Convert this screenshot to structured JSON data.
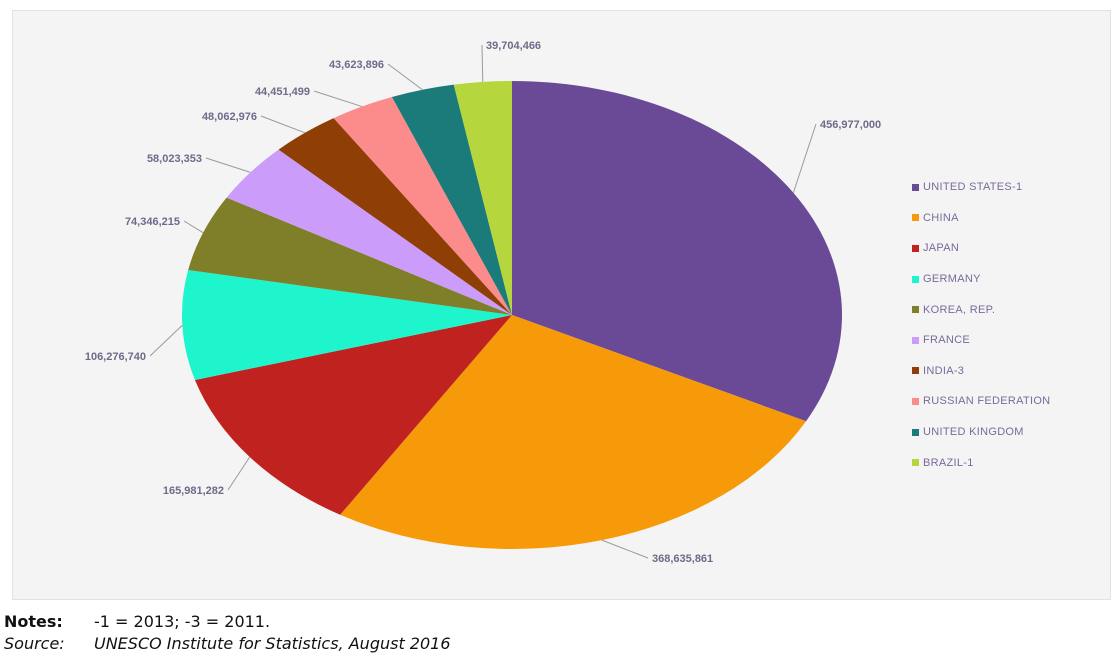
{
  "chart_data": {
    "type": "pie",
    "title": "",
    "slices": [
      {
        "label": "UNITED STATES-1",
        "value": 456977000,
        "value_label": "456,977,000",
        "color": "#6a4a96"
      },
      {
        "label": "CHINA",
        "value": 368635861,
        "value_label": "368,635,861",
        "color": "#f79a09"
      },
      {
        "label": "JAPAN",
        "value": 165981282,
        "value_label": "165,981,282",
        "color": "#c02220"
      },
      {
        "label": "GERMANY",
        "value": 106276740,
        "value_label": "106,276,740",
        "color": "#1ef5cc"
      },
      {
        "label": "KOREA, REP.",
        "value": 74346215,
        "value_label": "74,346,215",
        "color": "#7f7f2a"
      },
      {
        "label": "FRANCE",
        "value": 58023353,
        "value_label": "58,023,353",
        "color": "#cc9cfa"
      },
      {
        "label": "INDIA-3",
        "value": 48062976,
        "value_label": "48,062,976",
        "color": "#8f3e06"
      },
      {
        "label": "RUSSIAN FEDERATION",
        "value": 44451499,
        "value_label": "44,451,499",
        "color": "#fc8b8c"
      },
      {
        "label": "UNITED KINGDOM",
        "value": 43623896,
        "value_label": "43,623,896",
        "color": "#1b7a7a"
      },
      {
        "label": "BRAZIL-1",
        "value": 39704466,
        "value_label": "39,704,466",
        "color": "#b5d63c"
      }
    ],
    "legend_position": "right"
  },
  "notes": {
    "notes_key": "Notes:",
    "notes_text": "-1 = 2013; -3 = 2011.",
    "source_key": "Source:",
    "source_text": "UNESCO Institute for Statistics, August 2016"
  }
}
